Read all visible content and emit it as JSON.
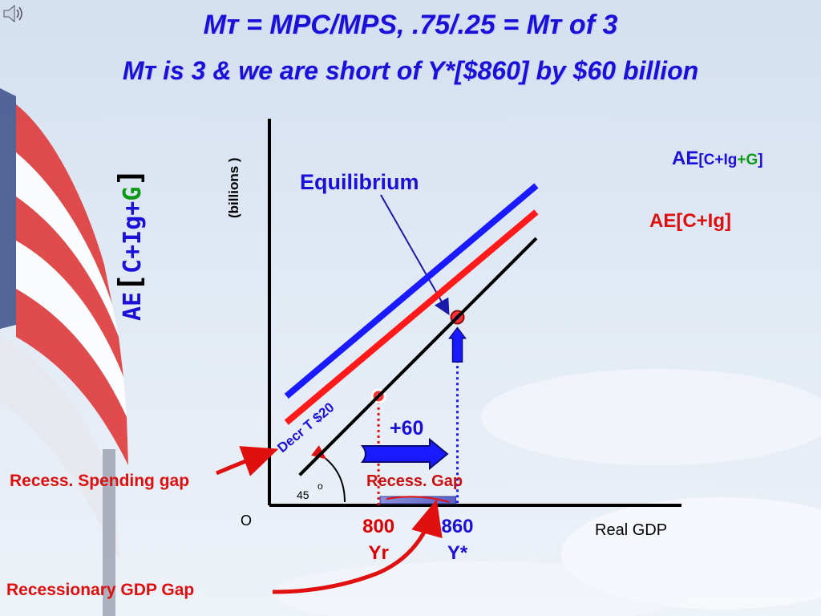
{
  "title": {
    "line1": "Mᴛ = MPC/MPS,  .75/.25 = Mᴛ of 3",
    "line2": "Mᴛ is 3 & we are short of Y*[$860] by $60 billion"
  },
  "chart_data": {
    "type": "line",
    "xlabel": "Real GDP",
    "ylabel": "AE[C+Ig+G]",
    "ylabel_unit": "(billions )",
    "origin_label": "O",
    "angle_label": "45",
    "angle_degree": "o",
    "series": [
      {
        "name": "AE[C+Ig+G]",
        "name_parts": [
          "AE",
          "[C+Ig",
          "+G",
          "]"
        ],
        "color": "#1a1aff",
        "from_x": 730,
        "from_y": 800,
        "to_x": 920,
        "to_y": 960
      },
      {
        "name": "AE[C+Ig]",
        "color": "#ff1a1a",
        "from_x": 730,
        "from_y": 780,
        "to_x": 920,
        "to_y": 940
      },
      {
        "name": "45-degree line",
        "color": "#000000",
        "from_x": 740,
        "from_y": 740,
        "to_x": 920,
        "to_y": 920
      }
    ],
    "x_ticks": [
      {
        "value": 800,
        "line1": "800",
        "line2": "Yr",
        "color": "#dd0000"
      },
      {
        "value": 860,
        "line1": "860",
        "line2": "Y*",
        "color": "#1a10d8"
      }
    ],
    "annotations": {
      "equilibrium": "Equilibrium",
      "decrease_tax": "Decr T $20",
      "multiplier_change": "+60",
      "recess_gap": "Recess. Gap",
      "recess_spending_gap": "Recess. Spending gap",
      "recessionary_gdp_gap": "Recessionary GDP Gap"
    }
  }
}
